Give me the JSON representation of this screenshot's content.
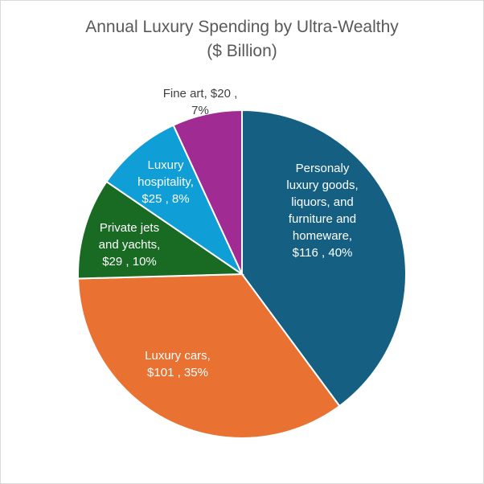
{
  "chart_data": {
    "type": "pie",
    "title_lines": [
      "Annual Luxury Spending by Ultra-Wealthy",
      "($ Billion)"
    ],
    "slices": [
      {
        "label": "Personaly luxury goods, liquors, and furniture and homeware",
        "value": 116,
        "percent": "40%",
        "color": "#156082",
        "label_lines": [
          "Personaly",
          "luxury goods,",
          "liquors, and",
          "furniture and",
          "homeware,",
          "$116 , 40%"
        ],
        "text_color": "#ffffff"
      },
      {
        "label": "Luxury cars",
        "value": 101,
        "percent": "35%",
        "color": "#E97132",
        "label_lines": [
          "Luxury cars,",
          "$101 , 35%"
        ],
        "text_color": "#ffffff"
      },
      {
        "label": "Private jets and yachts",
        "value": 29,
        "percent": "10%",
        "color": "#196B24",
        "label_lines": [
          "Private jets",
          "and yachts,",
          "$29 , 10%"
        ],
        "text_color": "#ffffff"
      },
      {
        "label": "Luxury hospitality",
        "value": 25,
        "percent": "8%",
        "color": "#0F9ED5",
        "label_lines": [
          "Luxury",
          "hospitality,",
          "$25 , 8%"
        ],
        "text_color": "#ffffff"
      },
      {
        "label": "Fine art",
        "value": 20,
        "percent": "7%",
        "color": "#A02B93",
        "label_lines": [
          "Fine art,  $20 ,",
          "7%"
        ],
        "text_color": "#404040"
      }
    ]
  }
}
